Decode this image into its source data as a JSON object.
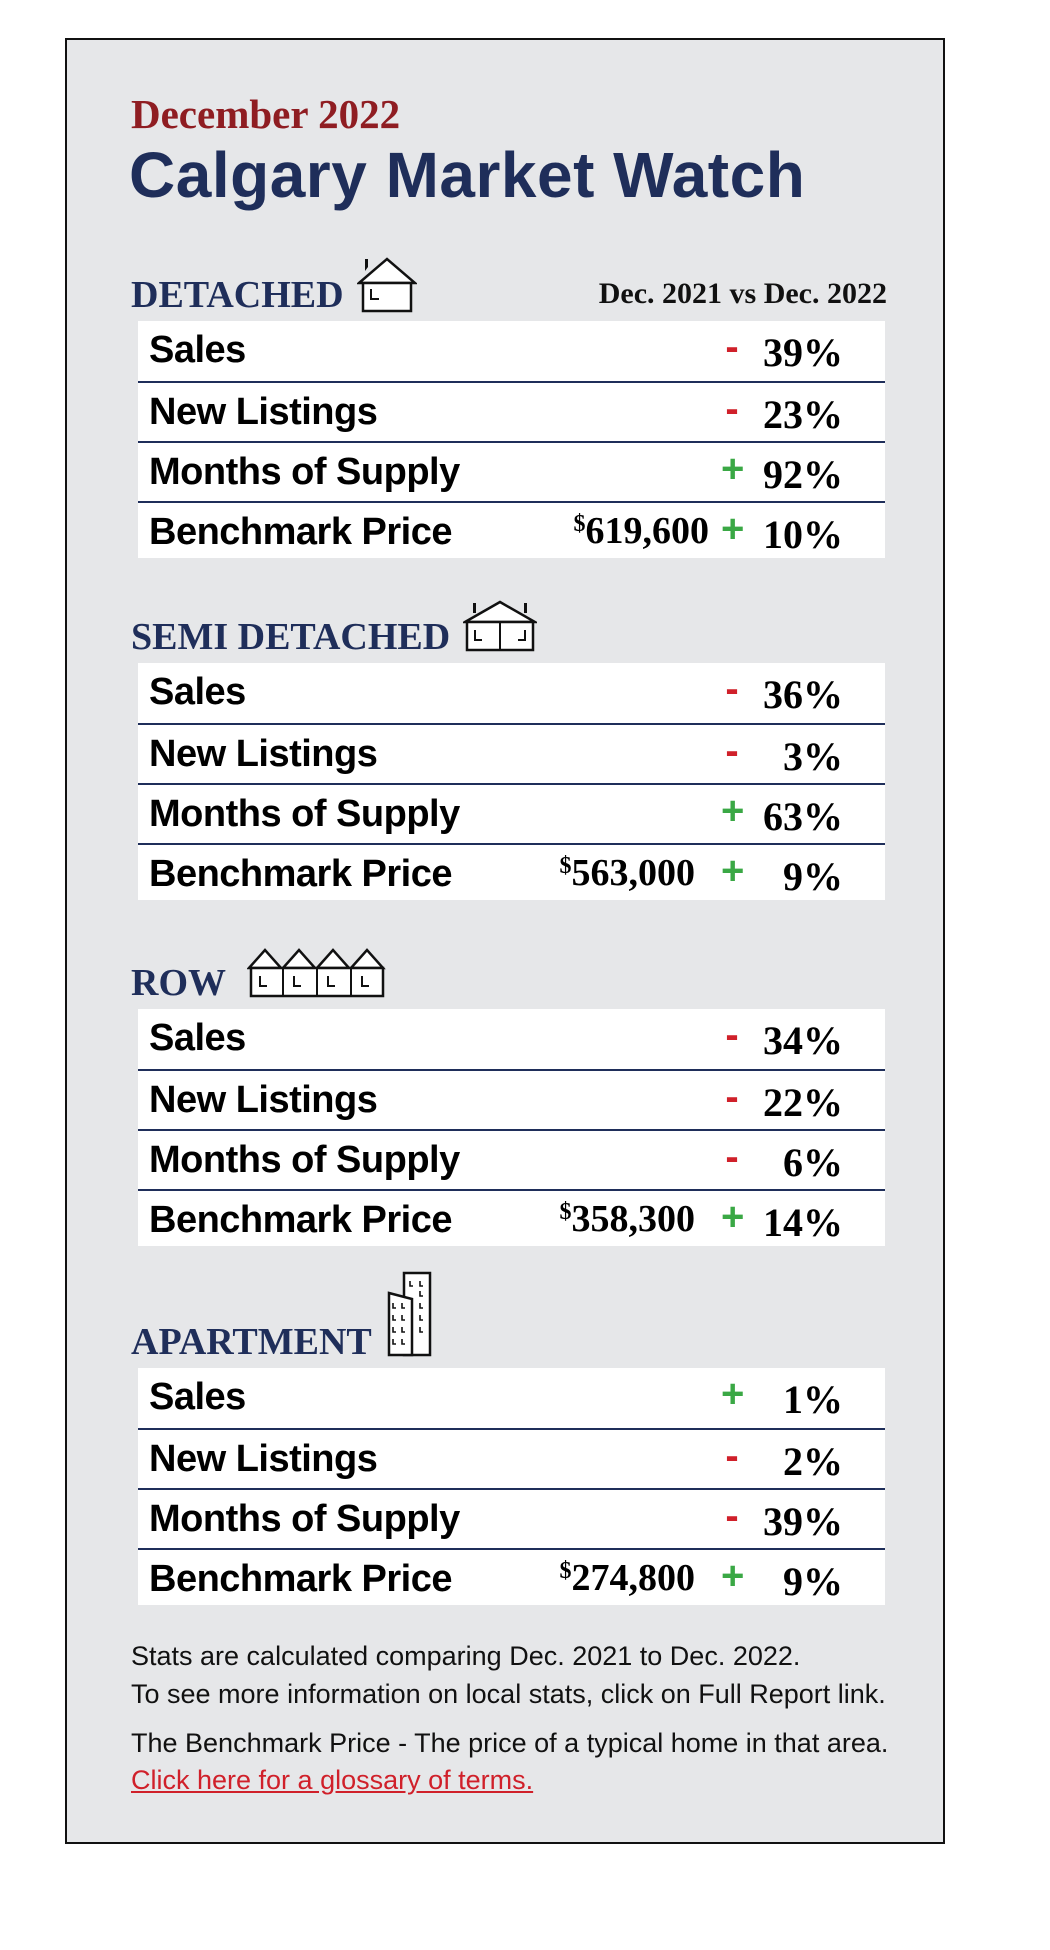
{
  "header": {
    "kicker": "December 2022",
    "title": "Calgary Market Watch"
  },
  "comparison_label": "Dec. 2021 vs Dec. 2022",
  "colors": {
    "accent_navy": "#1f2e5a",
    "kicker_red": "#8f1d22",
    "negative": "#d0202a",
    "positive": "#3aa845",
    "panel_bg": "#e6e7e9"
  },
  "sections": [
    {
      "name": "DETACHED",
      "icon": "house-icon",
      "rows": [
        {
          "label": "Sales",
          "price": "",
          "sign": "-",
          "value": "39%"
        },
        {
          "label": "New Listings",
          "price": "",
          "sign": "-",
          "value": "23%"
        },
        {
          "label": "Months of Supply",
          "price": "",
          "sign": "+",
          "value": "92%"
        },
        {
          "label": "Benchmark Price",
          "price": "619,600",
          "currency": "$",
          "sign": "+",
          "value": "10%"
        }
      ]
    },
    {
      "name": "SEMI DETACHED",
      "icon": "semi-detached-house-icon",
      "rows": [
        {
          "label": "Sales",
          "price": "",
          "sign": "-",
          "value": "36%"
        },
        {
          "label": "New Listings",
          "price": "",
          "sign": "-",
          "value": "3%"
        },
        {
          "label": "Months of Supply",
          "price": "",
          "sign": "+",
          "value": "63%"
        },
        {
          "label": "Benchmark Price",
          "price": "563,000",
          "currency": "$",
          "sign": "+",
          "value": "9%"
        }
      ]
    },
    {
      "name": "ROW",
      "icon": "row-houses-icon",
      "rows": [
        {
          "label": "Sales",
          "price": "",
          "sign": "-",
          "value": "34%"
        },
        {
          "label": "New Listings",
          "price": "",
          "sign": "-",
          "value": "22%"
        },
        {
          "label": "Months of Supply",
          "price": "",
          "sign": "-",
          "value": "6%"
        },
        {
          "label": "Benchmark Price",
          "price": "358,300",
          "currency": "$",
          "sign": "+",
          "value": "14%"
        }
      ]
    },
    {
      "name": "APARTMENT",
      "icon": "apartment-building-icon",
      "rows": [
        {
          "label": "Sales",
          "price": "",
          "sign": "+",
          "value": "1%"
        },
        {
          "label": "New Listings",
          "price": "",
          "sign": "-",
          "value": "2%"
        },
        {
          "label": "Months of Supply",
          "price": "",
          "sign": "-",
          "value": "39%"
        },
        {
          "label": "Benchmark Price",
          "price": "274,800",
          "currency": "$",
          "sign": "+",
          "value": "9%"
        }
      ]
    }
  ],
  "footer": {
    "line1": "Stats are calculated comparing Dec. 2021 to Dec. 2022.",
    "line2": "To see more information on local stats, click on Full Report link.",
    "line3": "The Benchmark Price - The price of a typical home in that area.",
    "glossary_link": "Click here for a glossary of terms."
  }
}
